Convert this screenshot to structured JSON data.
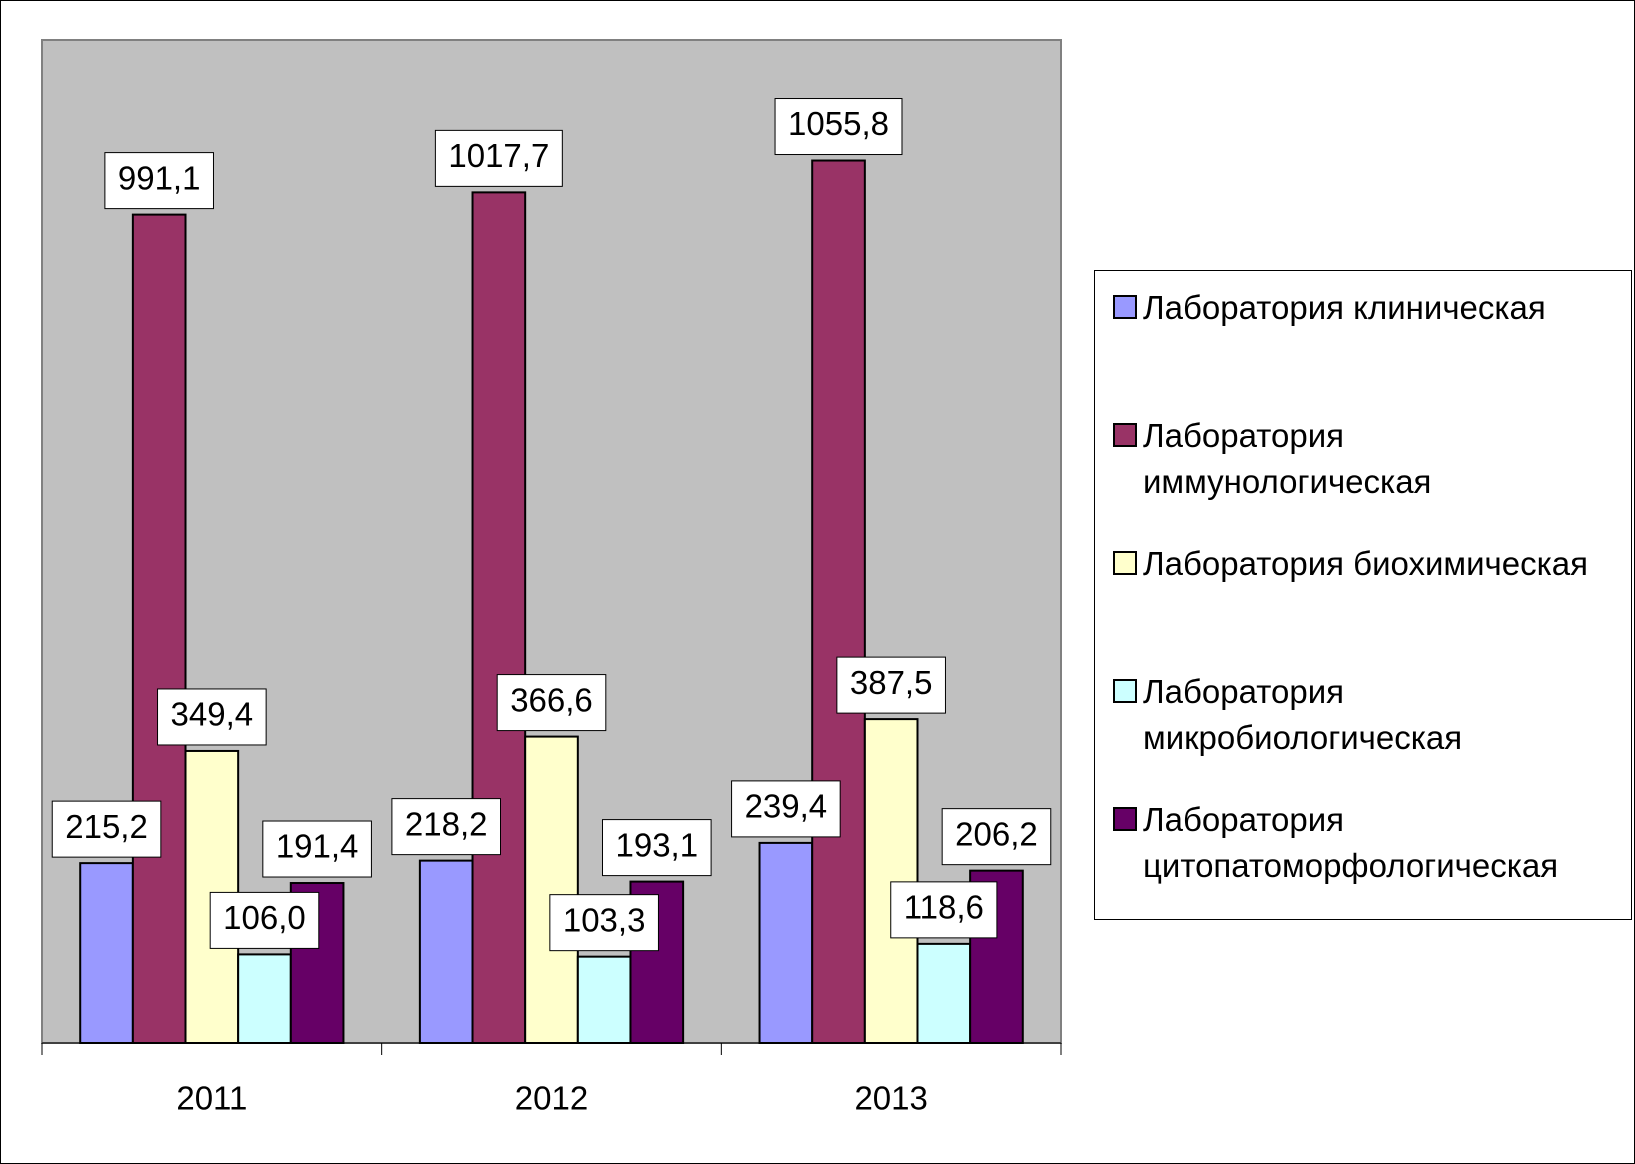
{
  "chart_data": {
    "type": "bar",
    "categories": [
      "2011",
      "2012",
      "2013"
    ],
    "ylim": [
      0,
      1200
    ],
    "series": [
      {
        "name": "Лаборатория клиническая",
        "color": "#9999ff",
        "values": [
          215.2,
          218.2,
          239.4
        ],
        "value_labels": [
          "215,2",
          "218,2",
          "239,4"
        ]
      },
      {
        "name": "Лаборатория иммунологическая",
        "color": "#993366",
        "values": [
          991.1,
          1017.7,
          1055.8
        ],
        "value_labels": [
          "991,1",
          "1017,7",
          "1055,8"
        ]
      },
      {
        "name": "Лаборатория биохимическая",
        "color": "#ffffcc",
        "values": [
          349.4,
          366.6,
          387.5
        ],
        "value_labels": [
          "349,4",
          "366,6",
          "387,5"
        ]
      },
      {
        "name": "Лаборатория микробиологическая",
        "color": "#ccffff",
        "values": [
          106.0,
          103.3,
          118.6
        ],
        "value_labels": [
          "106,0",
          "103,3",
          "118,6"
        ]
      },
      {
        "name": "Лаборатория цитопатоморфологическая",
        "color": "#660066",
        "values": [
          191.4,
          193.1,
          206.2
        ],
        "value_labels": [
          "191,4",
          "193,1",
          "206,2"
        ]
      }
    ]
  }
}
